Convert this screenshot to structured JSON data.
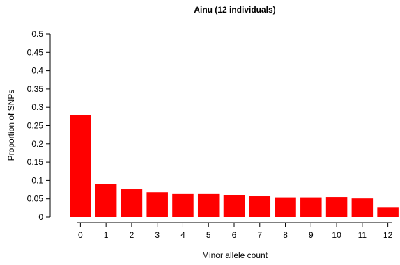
{
  "chart_data": {
    "type": "bar",
    "title": "Ainu (12 individuals)",
    "xlabel": "Minor allele count",
    "ylabel": "Proportion of SNPs",
    "categories": [
      "0",
      "1",
      "2",
      "3",
      "4",
      "5",
      "6",
      "7",
      "8",
      "9",
      "10",
      "11",
      "12"
    ],
    "values": [
      0.279,
      0.091,
      0.076,
      0.068,
      0.063,
      0.063,
      0.059,
      0.057,
      0.054,
      0.054,
      0.055,
      0.051,
      0.026
    ],
    "ylim": [
      0,
      0.5
    ],
    "yticks": [
      "0",
      "0.05",
      "0.1",
      "0.15",
      "0.2",
      "0.25",
      "0.3",
      "0.35",
      "0.4",
      "0.45",
      "0.5"
    ],
    "bar_color": "#ff0000",
    "grid": false,
    "legend": "none"
  }
}
